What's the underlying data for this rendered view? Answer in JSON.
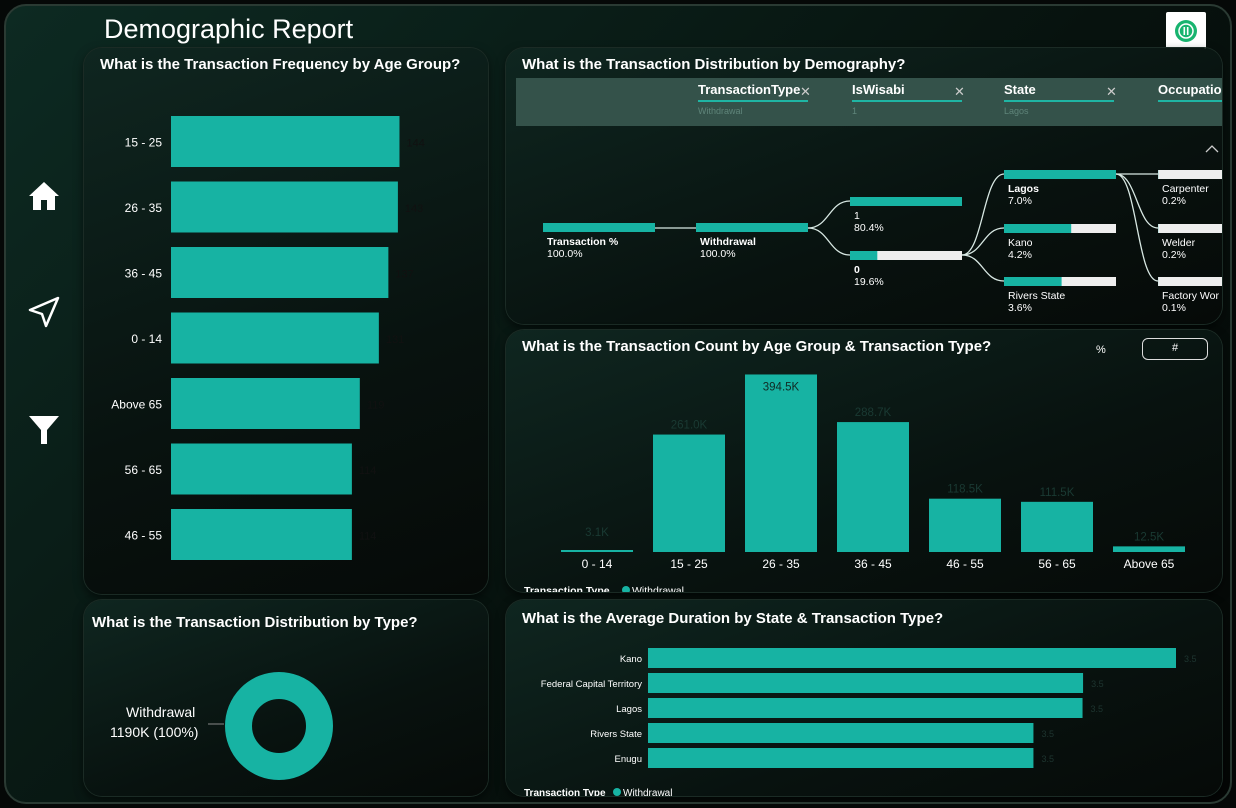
{
  "header": {
    "title": "Demographic Report"
  },
  "nav": {
    "items": [
      "home-icon",
      "send-icon",
      "filter-icon"
    ]
  },
  "colors": {
    "accent": "#17b3a3",
    "background": "#07120e"
  },
  "age_freq": {
    "title": "What is the Transaction Frequency by Age Group?",
    "chart_data": {
      "type": "bar",
      "orientation": "horizontal",
      "categories": [
        "15 - 25",
        "26 - 35",
        "36 - 45",
        "0 - 14",
        "Above 65",
        "56 - 65",
        "46 - 55"
      ],
      "values": [
        144,
        143,
        137,
        131,
        119,
        114,
        114
      ],
      "data_labels": [
        "144",
        "143",
        "137",
        "131",
        "119",
        "114",
        "114"
      ],
      "xlim": [
        0,
        150
      ]
    }
  },
  "decomp": {
    "title": "What is the Transaction Distribution by Demography?",
    "fields": [
      {
        "label": "TransactionType",
        "sub": "Withdrawal"
      },
      {
        "label": "IsWisabi",
        "sub": "1"
      },
      {
        "label": "State",
        "sub": "Lagos"
      },
      {
        "label": "Occupatio",
        "sub": ""
      }
    ],
    "root": {
      "label": "Transaction %",
      "value": "100.0%"
    },
    "level1": {
      "label": "Withdrawal",
      "value": "100.0%"
    },
    "level2": [
      {
        "label": "1",
        "value": "80.4%"
      },
      {
        "label": "0",
        "value": "19.6%"
      }
    ],
    "level3": [
      {
        "label": "Lagos",
        "value": "7.0%"
      },
      {
        "label": "Kano",
        "value": "4.2%"
      },
      {
        "label": "Rivers State",
        "value": "3.6%"
      }
    ],
    "level4": [
      {
        "label": "Carpenter",
        "value": "0.2%"
      },
      {
        "label": "Welder",
        "value": "0.2%"
      },
      {
        "label": "Factory Wor",
        "value": "0.1%"
      }
    ]
  },
  "count_chart": {
    "title": "What is the Transaction Count by Age Group & Transaction Type?",
    "toggle_pct": "%",
    "toggle_num": "#",
    "legend_title": "Transaction Type",
    "legend_item": "Withdrawal",
    "chart_data": {
      "type": "bar",
      "categories": [
        "0 - 14",
        "15 - 25",
        "26 - 35",
        "36 - 45",
        "46 - 55",
        "56 - 65",
        "Above 65"
      ],
      "series": [
        {
          "name": "Withdrawal",
          "values": [
            3.1,
            261.0,
            394.5,
            288.7,
            118.5,
            111.5,
            12.5
          ]
        }
      ],
      "data_labels": [
        "3.1K",
        "261.0K",
        "394.5K",
        "288.7K",
        "118.5K",
        "111.5K",
        "12.5K"
      ],
      "ylim": [
        0,
        400
      ]
    }
  },
  "type_dist": {
    "title": "What is the Transaction Distribution by Type?",
    "label_name": "Withdrawal",
    "label_value": "1190K (100%)",
    "chart_data": {
      "type": "pie",
      "donut": true,
      "categories": [
        "Withdrawal"
      ],
      "values": [
        1190
      ]
    }
  },
  "duration": {
    "title": "What is the Average Duration by State & Transaction Type?",
    "legend_title": "Transaction Type",
    "legend_item": "Withdrawal",
    "chart_data": {
      "type": "bar",
      "orientation": "horizontal",
      "categories": [
        "Kano",
        "Federal Capital Territory",
        "Lagos",
        "Rivers State",
        "Enugu"
      ],
      "series": [
        {
          "name": "Withdrawal",
          "values": [
            3.5,
            3.5,
            3.5,
            3.5,
            3.5
          ]
        }
      ],
      "data_labels": [
        "3.5",
        "3.5",
        "3.5",
        "3.5",
        "3.5"
      ]
    }
  }
}
